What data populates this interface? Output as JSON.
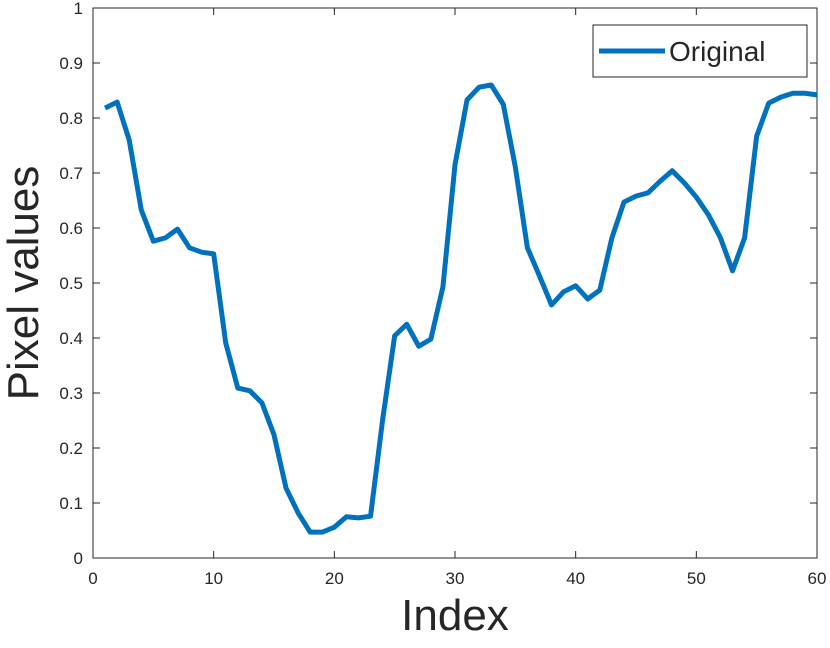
{
  "chart_data": {
    "type": "line",
    "x_label": "Index",
    "y_label": "Pixel values",
    "x": [
      1,
      2,
      3,
      4,
      5,
      6,
      7,
      8,
      9,
      10,
      11,
      12,
      13,
      14,
      15,
      16,
      17,
      18,
      19,
      20,
      21,
      22,
      23,
      24,
      25,
      26,
      27,
      28,
      29,
      30,
      31,
      32,
      33,
      34,
      35,
      36,
      37,
      38,
      39,
      40,
      41,
      42,
      43,
      44,
      45,
      46,
      47,
      48,
      49,
      50,
      51,
      52,
      53,
      54,
      55,
      56,
      57,
      58,
      59,
      60
    ],
    "series": [
      {
        "name": "Original",
        "color": "#0072bd",
        "values": [
          0.818,
          0.829,
          0.76,
          0.633,
          0.576,
          0.582,
          0.598,
          0.564,
          0.556,
          0.553,
          0.391,
          0.309,
          0.304,
          0.282,
          0.224,
          0.127,
          0.082,
          0.047,
          0.047,
          0.056,
          0.075,
          0.073,
          0.076,
          0.251,
          0.404,
          0.425,
          0.385,
          0.398,
          0.493,
          0.715,
          0.833,
          0.856,
          0.86,
          0.825,
          0.711,
          0.564,
          0.513,
          0.46,
          0.484,
          0.495,
          0.471,
          0.487,
          0.582,
          0.647,
          0.658,
          0.664,
          0.685,
          0.704,
          0.682,
          0.656,
          0.624,
          0.582,
          0.522,
          0.582,
          0.767,
          0.827,
          0.838,
          0.845,
          0.845,
          0.842
        ]
      }
    ],
    "xlim": [
      0,
      60
    ],
    "xticks": [
      0,
      10,
      20,
      30,
      40,
      50,
      60
    ],
    "ylim": [
      0,
      1
    ],
    "yticks": [
      0,
      0.1,
      0.2,
      0.3,
      0.4,
      0.5,
      0.6,
      0.7,
      0.8,
      0.9,
      1
    ],
    "legend": "upper right",
    "grid": false
  }
}
